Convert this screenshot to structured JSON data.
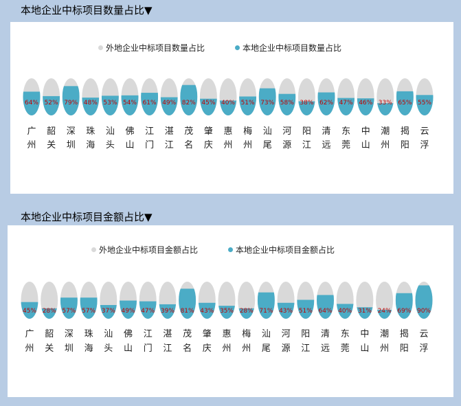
{
  "charts": [
    {
      "heading": "本地企业中标项目数量占比▼",
      "legend_outer": "外地企业中标项目数量占比",
      "legend_inner": "本地企业中标项目数量占比"
    },
    {
      "heading": "本地企业中标项目金额占比▼",
      "legend_outer": "外地企业中标项目金额占比",
      "legend_inner": "本地企业中标项目金额占比"
    }
  ],
  "colors": {
    "outer": "#d9d9d9",
    "inner": "#4bacc6",
    "label": "#c00000",
    "background": "#b8cce4",
    "panel": "#ffffff"
  },
  "chart_data": [
    {
      "type": "bar",
      "title": "本地企业中标项目数量占比",
      "categories": [
        "广州",
        "韶关",
        "深圳",
        "珠海",
        "汕头",
        "佛山",
        "江门",
        "湛江",
        "茂名",
        "肇庆",
        "惠州",
        "梅州",
        "汕尾",
        "河源",
        "阳江",
        "清远",
        "东莞",
        "中山",
        "潮州",
        "揭阳",
        "云浮"
      ],
      "series": [
        {
          "name": "本地企业中标项目数量占比",
          "values": [
            64,
            52,
            79,
            48,
            53,
            54,
            61,
            49,
            82,
            45,
            40,
            51,
            73,
            58,
            38,
            62,
            47,
            46,
            33,
            65,
            55
          ]
        },
        {
          "name": "外地企业中标项目数量占比",
          "values": [
            36,
            48,
            21,
            52,
            47,
            46,
            39,
            51,
            18,
            55,
            60,
            49,
            27,
            42,
            62,
            38,
            53,
            54,
            67,
            35,
            45
          ]
        }
      ],
      "value_labels": [
        "64%",
        "52%",
        "79%",
        "48%",
        "53%",
        "54%",
        "61%",
        "49%",
        "82%",
        "45%",
        "40%",
        "51%",
        "73%",
        "58%",
        "38%",
        "62%",
        "47%",
        "46%",
        "33%",
        "65%",
        "55%"
      ],
      "ylim": [
        0,
        100
      ],
      "stacked": true
    },
    {
      "type": "bar",
      "title": "本地企业中标项目金额占比",
      "categories": [
        "广州",
        "韶关",
        "深圳",
        "珠海",
        "汕头",
        "佛山",
        "江门",
        "湛江",
        "茂名",
        "肇庆",
        "惠州",
        "梅州",
        "汕尾",
        "河源",
        "阳江",
        "清远",
        "东莞",
        "中山",
        "潮州",
        "揭阳",
        "云浮"
      ],
      "series": [
        {
          "name": "本地企业中标项目金额占比",
          "values": [
            45,
            28,
            57,
            57,
            37,
            49,
            47,
            39,
            81,
            43,
            35,
            28,
            71,
            43,
            51,
            64,
            40,
            31,
            24,
            69,
            90
          ]
        },
        {
          "name": "外地企业中标项目金额占比",
          "values": [
            55,
            72,
            43,
            43,
            63,
            51,
            53,
            61,
            19,
            57,
            65,
            72,
            29,
            57,
            49,
            36,
            60,
            69,
            76,
            31,
            10
          ]
        }
      ],
      "value_labels": [
        "45%",
        "28%",
        "57%",
        "57%",
        "37%",
        "49%",
        "47%",
        "39%",
        "81%",
        "43%",
        "35%",
        "28%",
        "71%",
        "43%",
        "51%",
        "64%",
        "40%",
        "31%",
        "24%",
        "69%",
        "90%"
      ],
      "ylim": [
        0,
        100
      ],
      "stacked": true
    }
  ]
}
